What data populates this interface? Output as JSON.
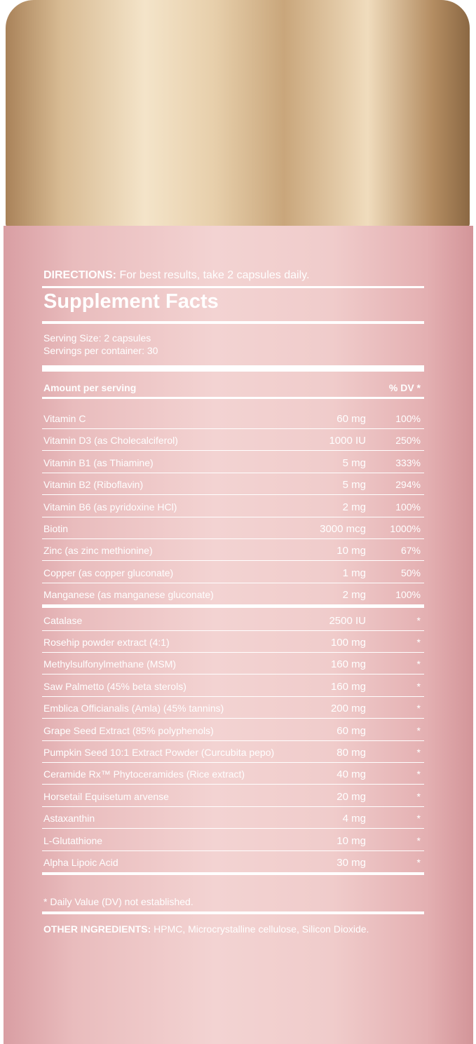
{
  "directions": {
    "label": "DIRECTIONS:",
    "text": "For best results, take 2 capsules daily."
  },
  "title": "Supplement Facts",
  "serving_size": "Serving Size: 2 capsules",
  "servings_per_container": "Servings per container: 30",
  "header": {
    "amount": "Amount per serving",
    "dv": "% DV *"
  },
  "rows": [
    [
      "Vitamin C",
      "60 mg",
      "100%"
    ],
    [
      "Vitamin D3 (as Cholecalciferol)",
      "1000 IU",
      "250%"
    ],
    [
      "Vitamin B1 (as Thiamine)",
      "5 mg",
      "333%"
    ],
    [
      "Vitamin B2 (Riboflavin)",
      "5 mg",
      "294%"
    ],
    [
      "Vitamin B6 (as pyridoxine HCl)",
      "2 mg",
      "100%"
    ],
    [
      "Biotin",
      "3000 mcg",
      "1000%"
    ],
    [
      "Zinc (as zinc methionine)",
      "10 mg",
      "67%"
    ],
    [
      "Copper (as copper gluconate)",
      "1 mg",
      "50%"
    ],
    [
      "Manganese (as manganese gluconate)",
      "2 mg",
      "100%"
    ],
    [
      "Catalase",
      "2500 IU",
      "*"
    ],
    [
      "Rosehip powder extract (4:1)",
      "100 mg",
      "*"
    ],
    [
      "Methylsulfonylmethane (MSM)",
      "160 mg",
      "*"
    ],
    [
      "Saw Palmetto (45% beta sterols)",
      "160 mg",
      "*"
    ],
    [
      "Emblica Officianalis (Amla) (45% tannins)",
      "200 mg",
      "*"
    ],
    [
      "Grape Seed Extract (85% polyphenols)",
      "60 mg",
      "*"
    ],
    [
      "Pumpkin Seed 10:1 Extract Powder (Curcubita pepo)",
      "80 mg",
      "*"
    ],
    [
      "Ceramide Rx™ Phytoceramides (Rice extract)",
      "40 mg",
      "*"
    ],
    [
      "Horsetail Equisetum arvense",
      "20 mg",
      "*"
    ],
    [
      "Astaxanthin",
      "4 mg",
      "*"
    ],
    [
      "L-Glutathione",
      "10 mg",
      "*"
    ],
    [
      "Alpha Lipoic Acid",
      "30 mg",
      "*"
    ]
  ],
  "footnote": "* Daily Value (DV) not established.",
  "other_ingredients": {
    "label": "OTHER INGREDIENTS:",
    "text": "HPMC, Microcrystalline cellulose, Silicon Dioxide."
  }
}
